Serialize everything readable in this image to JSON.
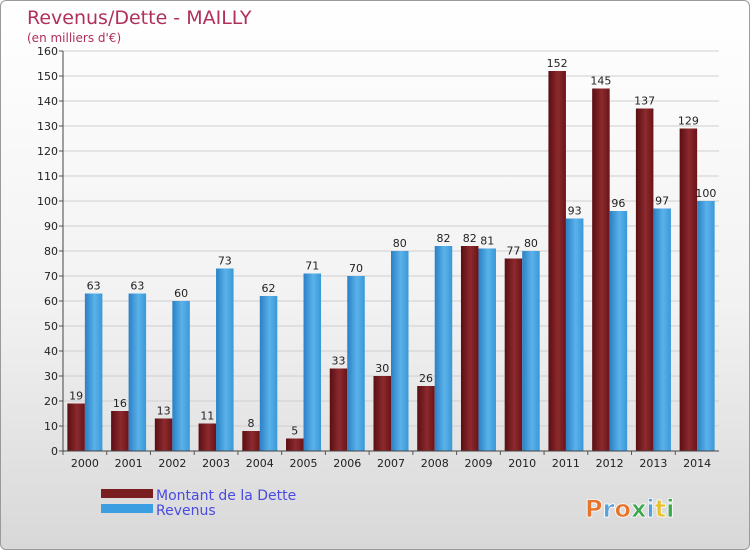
{
  "chart_data": {
    "type": "bar",
    "title": "Revenus/Dette - MAILLY",
    "subtitle": "(en milliers d'€)",
    "categories": [
      "2000",
      "2001",
      "2002",
      "2003",
      "2004",
      "2005",
      "2006",
      "2007",
      "2008",
      "2009",
      "2010",
      "2011",
      "2012",
      "2013",
      "2014"
    ],
    "series": [
      {
        "name": "Montant de la Dette",
        "color": "#7a1e22",
        "values": [
          19,
          16,
          13,
          11,
          8,
          5,
          33,
          30,
          26,
          82,
          77,
          152,
          145,
          137,
          129
        ]
      },
      {
        "name": "Revenus",
        "color": "#3a9ee0",
        "values": [
          63,
          63,
          60,
          73,
          62,
          71,
          70,
          80,
          82,
          81,
          80,
          93,
          96,
          97,
          100
        ]
      }
    ],
    "ylim": [
      0,
      160
    ],
    "yticks": [
      0,
      10,
      20,
      30,
      40,
      50,
      60,
      70,
      80,
      90,
      100,
      110,
      120,
      130,
      140,
      150,
      160
    ],
    "grid": true,
    "legend_position": "bottom-left"
  },
  "branding": {
    "logo_text": "Proxiti",
    "logo_colors": [
      "#e8732a",
      "#5aa0d8",
      "#e8732a",
      "#3aa84a",
      "#5aa0d8",
      "#e8c02a",
      "#3aa84a"
    ]
  }
}
